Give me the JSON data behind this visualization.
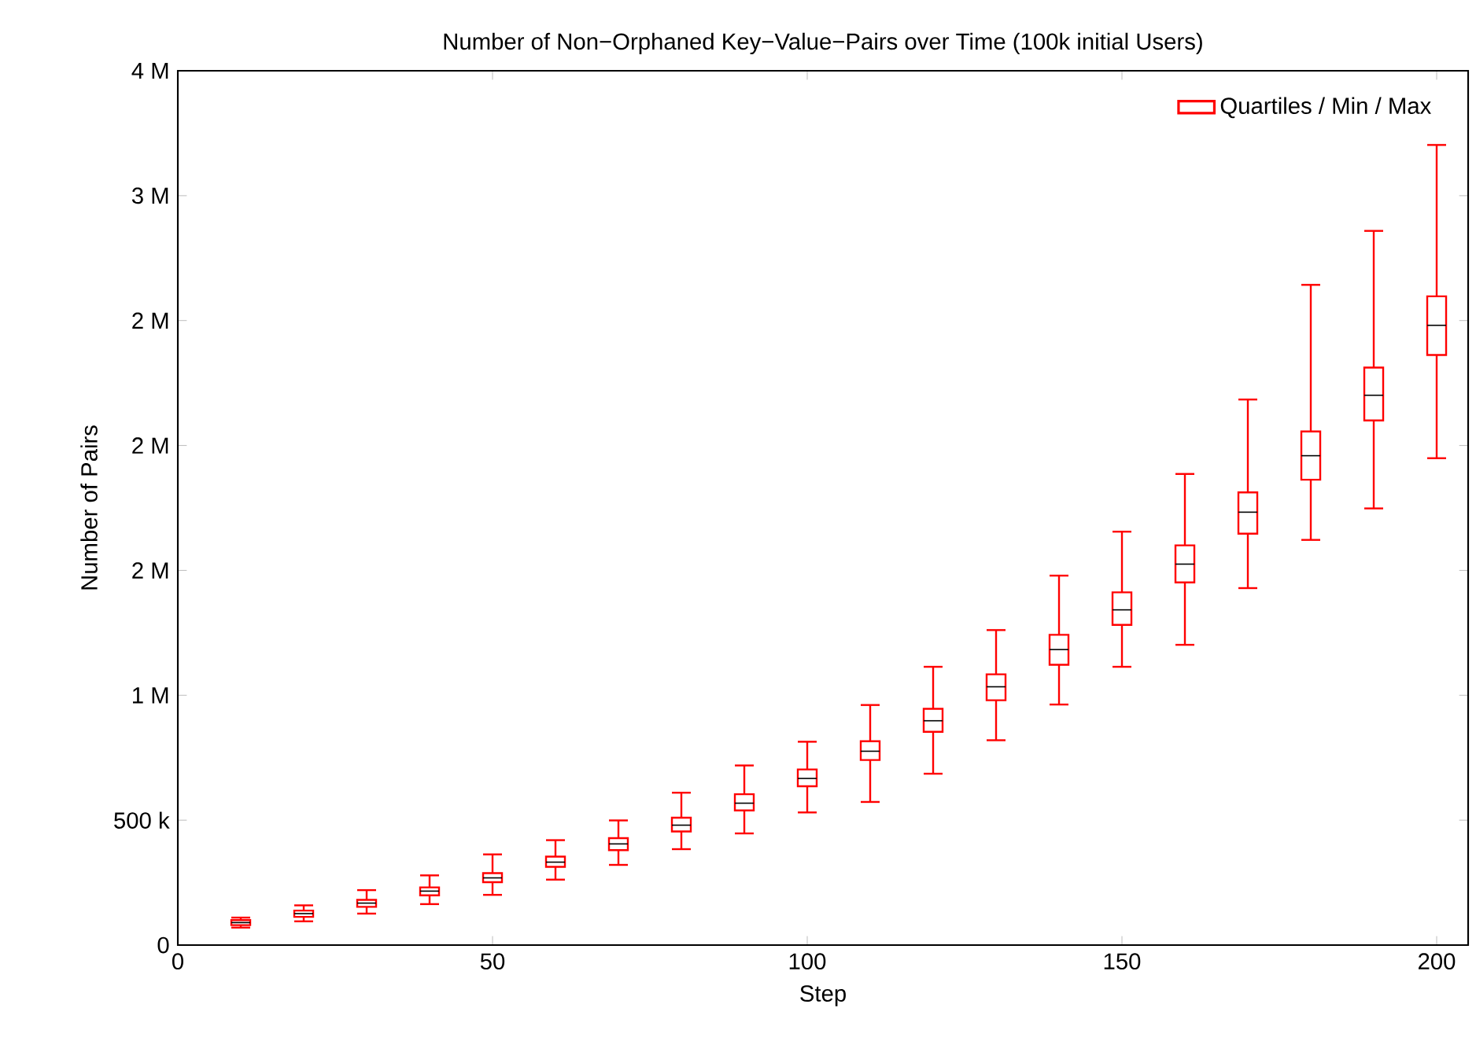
{
  "chart_data": {
    "type": "box",
    "title": "Number of Non−Orphaned Key−Value−Pairs over Time (100k initial Users)",
    "xlabel": "Step",
    "ylabel": "Number of Pairs",
    "x": [
      10,
      20,
      30,
      40,
      50,
      60,
      70,
      80,
      90,
      100,
      110,
      120,
      130,
      140,
      150,
      160,
      170,
      180,
      190,
      200
    ],
    "series": [
      {
        "name": "Quartiles / Min / Max",
        "color": "#ff0000",
        "boxes": [
          {
            "low": 70000,
            "q1": 80000,
            "median": 90000,
            "q3": 100000,
            "high": 110000
          },
          {
            "low": 95000,
            "q1": 113000,
            "median": 126000,
            "q3": 138000,
            "high": 159000
          },
          {
            "low": 126000,
            "q1": 153000,
            "median": 168000,
            "q3": 181000,
            "high": 220000
          },
          {
            "low": 164000,
            "q1": 199000,
            "median": 216000,
            "q3": 231000,
            "high": 279000
          },
          {
            "low": 201000,
            "q1": 252000,
            "median": 269000,
            "q3": 288000,
            "high": 363000
          },
          {
            "low": 262000,
            "q1": 313000,
            "median": 332000,
            "q3": 354000,
            "high": 420000
          },
          {
            "low": 321000,
            "q1": 380000,
            "median": 405000,
            "q3": 428000,
            "high": 499000
          },
          {
            "low": 384000,
            "q1": 455000,
            "median": 480000,
            "q3": 510000,
            "high": 610000
          },
          {
            "low": 447000,
            "q1": 539000,
            "median": 568000,
            "q3": 604000,
            "high": 719000
          },
          {
            "low": 531000,
            "q1": 636000,
            "median": 667000,
            "q3": 703000,
            "high": 814000
          },
          {
            "low": 573000,
            "q1": 741000,
            "median": 776000,
            "q3": 816000,
            "high": 961000
          },
          {
            "low": 686000,
            "q1": 854000,
            "median": 898000,
            "q3": 946000,
            "high": 1114000
          },
          {
            "low": 820000,
            "q1": 980000,
            "median": 1034000,
            "q3": 1084000,
            "high": 1261000
          },
          {
            "low": 963000,
            "q1": 1122000,
            "median": 1183000,
            "q3": 1242000,
            "high": 1479000
          },
          {
            "low": 1114000,
            "q1": 1282000,
            "median": 1342000,
            "q3": 1412000,
            "high": 1655000
          },
          {
            "low": 1202000,
            "q1": 1452000,
            "median": 1525000,
            "q3": 1600000,
            "high": 1886000
          },
          {
            "low": 1429000,
            "q1": 1647000,
            "median": 1733000,
            "q3": 1812000,
            "high": 2184000
          },
          {
            "low": 1622000,
            "q1": 1863000,
            "median": 1959000,
            "q3": 2056000,
            "high": 2643000
          },
          {
            "low": 1748000,
            "q1": 2100000,
            "median": 2201000,
            "q3": 2312000,
            "high": 2859000
          },
          {
            "low": 1949000,
            "q1": 2362000,
            "median": 2481000,
            "q3": 2597000,
            "high": 3203000
          }
        ]
      }
    ],
    "xlim": [
      0,
      205
    ],
    "xticks": [
      0,
      50,
      100,
      150,
      200
    ],
    "ylim": [
      0,
      3500000
    ],
    "yticks": [
      {
        "value": 0,
        "label": "0"
      },
      {
        "value": 500000,
        "label": "500 k"
      },
      {
        "value": 1000000,
        "label": "1 M"
      },
      {
        "value": 1500000,
        "label": "2 M"
      },
      {
        "value": 2000000,
        "label": "2 M"
      },
      {
        "value": 2500000,
        "label": "2 M"
      },
      {
        "value": 3000000,
        "label": "3 M"
      },
      {
        "value": 3500000,
        "label": "4 M"
      }
    ],
    "legend": "top right"
  }
}
